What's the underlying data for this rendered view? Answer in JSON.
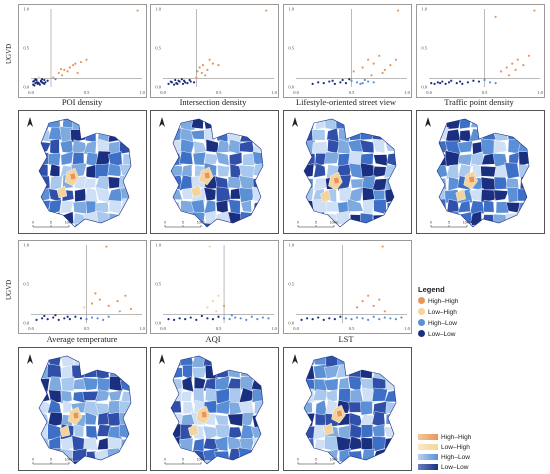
{
  "colors": {
    "high_high": "#e9955a",
    "low_high": "#f3d49c",
    "high_low": "#5b8fd6",
    "low_low": "#1b2f80",
    "axes": "#9a9a9a"
  },
  "y_label": "UGVD",
  "scatter_axis_ticks": {
    "x": [
      "0.0",
      "0.5",
      "1.0"
    ],
    "y": [
      "0.0",
      "0.5",
      "1.0"
    ]
  },
  "legend_points": {
    "title": "Legend",
    "items": [
      "High–High",
      "Low–High",
      "High–Low",
      "Low–Low"
    ]
  },
  "legend_bars": {
    "items": [
      "High–High",
      "Low–High",
      "High–Low",
      "Low–Low"
    ]
  },
  "map_scale_labels": [
    "0",
    "5",
    "10km"
  ],
  "chart_data": [
    {
      "type": "scatter",
      "title": "POI density",
      "xlabel": "POI density",
      "ylabel": "UGVD",
      "xlim": [
        0,
        1
      ],
      "ylim": [
        0,
        1
      ],
      "points": [
        [
          0.02,
          0.03
        ],
        [
          0.04,
          0.05
        ],
        [
          0.03,
          0.02
        ],
        [
          0.06,
          0.04
        ],
        [
          0.05,
          0.06
        ],
        [
          0.08,
          0.03
        ],
        [
          0.07,
          0.05
        ],
        [
          0.1,
          0.06
        ],
        [
          0.12,
          0.04
        ],
        [
          0.09,
          0.07
        ],
        [
          0.11,
          0.05
        ],
        [
          0.03,
          0.08
        ],
        [
          0.05,
          0.09
        ],
        [
          0.04,
          0.1
        ],
        [
          0.13,
          0.06
        ],
        [
          0.15,
          0.08
        ],
        [
          0.1,
          0.1
        ],
        [
          0.07,
          0.12
        ],
        [
          0.09,
          0.08
        ],
        [
          0.06,
          0.06
        ],
        [
          0.02,
          0.07
        ],
        [
          0.12,
          0.09
        ],
        [
          0.2,
          0.12
        ],
        [
          0.25,
          0.18
        ],
        [
          0.3,
          0.22
        ],
        [
          0.35,
          0.25
        ],
        [
          0.28,
          0.15
        ],
        [
          0.4,
          0.3
        ],
        [
          0.45,
          0.32
        ],
        [
          0.33,
          0.2
        ],
        [
          0.22,
          0.1
        ],
        [
          0.38,
          0.28
        ],
        [
          0.5,
          0.35
        ],
        [
          0.42,
          0.18
        ],
        [
          0.27,
          0.23
        ],
        [
          0.96,
          0.98
        ]
      ],
      "vline": 0.18,
      "hline": 0.11
    },
    {
      "type": "scatter",
      "title": "Intersection density",
      "xlabel": "Intersection density",
      "ylabel": "UGVD",
      "xlim": [
        0,
        1
      ],
      "ylim": [
        0,
        1
      ],
      "points": [
        [
          0.05,
          0.04
        ],
        [
          0.08,
          0.06
        ],
        [
          0.1,
          0.03
        ],
        [
          0.12,
          0.05
        ],
        [
          0.15,
          0.07
        ],
        [
          0.18,
          0.04
        ],
        [
          0.2,
          0.06
        ],
        [
          0.14,
          0.08
        ],
        [
          0.22,
          0.05
        ],
        [
          0.25,
          0.07
        ],
        [
          0.11,
          0.09
        ],
        [
          0.17,
          0.1
        ],
        [
          0.07,
          0.07
        ],
        [
          0.19,
          0.08
        ],
        [
          0.13,
          0.04
        ],
        [
          0.24,
          0.09
        ],
        [
          0.28,
          0.06
        ],
        [
          0.3,
          0.12
        ],
        [
          0.35,
          0.18
        ],
        [
          0.4,
          0.22
        ],
        [
          0.33,
          0.25
        ],
        [
          0.45,
          0.3
        ],
        [
          0.38,
          0.15
        ],
        [
          0.5,
          0.28
        ],
        [
          0.42,
          0.35
        ],
        [
          0.36,
          0.28
        ],
        [
          0.31,
          0.2
        ],
        [
          0.93,
          0.98
        ]
      ],
      "vline": 0.3,
      "hline": 0.11
    },
    {
      "type": "scatter",
      "title": "Lifestyle-oriented street view",
      "xlabel": "Lifestyle-oriented street view",
      "ylabel": "UGVD",
      "xlim": [
        0,
        1
      ],
      "ylim": [
        0,
        1
      ],
      "points": [
        [
          0.15,
          0.04
        ],
        [
          0.2,
          0.06
        ],
        [
          0.25,
          0.05
        ],
        [
          0.3,
          0.07
        ],
        [
          0.35,
          0.04
        ],
        [
          0.4,
          0.06
        ],
        [
          0.45,
          0.05
        ],
        [
          0.5,
          0.08
        ],
        [
          0.55,
          0.06
        ],
        [
          0.6,
          0.05
        ],
        [
          0.65,
          0.07
        ],
        [
          0.7,
          0.06
        ],
        [
          0.42,
          0.09
        ],
        [
          0.48,
          0.1
        ],
        [
          0.33,
          0.08
        ],
        [
          0.58,
          0.04
        ],
        [
          0.62,
          0.09
        ],
        [
          0.52,
          0.2
        ],
        [
          0.6,
          0.25
        ],
        [
          0.65,
          0.35
        ],
        [
          0.7,
          0.3
        ],
        [
          0.75,
          0.4
        ],
        [
          0.68,
          0.15
        ],
        [
          0.8,
          0.22
        ],
        [
          0.85,
          0.28
        ],
        [
          0.9,
          0.35
        ],
        [
          0.78,
          0.18
        ],
        [
          0.92,
          0.98
        ]
      ],
      "vline": 0.5,
      "hline": 0.11
    },
    {
      "type": "scatter",
      "title": "Traffic point density",
      "xlabel": "Traffic point density",
      "ylabel": "UGVD",
      "xlim": [
        0,
        1
      ],
      "ylim": [
        0,
        1
      ],
      "points": [
        [
          0.02,
          0.05
        ],
        [
          0.05,
          0.04
        ],
        [
          0.08,
          0.06
        ],
        [
          0.1,
          0.05
        ],
        [
          0.12,
          0.07
        ],
        [
          0.15,
          0.04
        ],
        [
          0.18,
          0.06
        ],
        [
          0.2,
          0.08
        ],
        [
          0.25,
          0.05
        ],
        [
          0.28,
          0.07
        ],
        [
          0.3,
          0.04
        ],
        [
          0.35,
          0.06
        ],
        [
          0.4,
          0.08
        ],
        [
          0.45,
          0.07
        ],
        [
          0.5,
          0.09
        ],
        [
          0.55,
          0.06
        ],
        [
          0.6,
          0.05
        ],
        [
          0.65,
          0.2
        ],
        [
          0.7,
          0.25
        ],
        [
          0.75,
          0.3
        ],
        [
          0.8,
          0.35
        ],
        [
          0.85,
          0.28
        ],
        [
          0.9,
          0.4
        ],
        [
          0.72,
          0.15
        ],
        [
          0.78,
          0.22
        ],
        [
          0.6,
          0.9
        ],
        [
          0.95,
          0.98
        ]
      ],
      "vline": 0.5,
      "hline": 0.11
    },
    {
      "type": "scatter",
      "title": "Average temperature",
      "xlabel": "Average temperature",
      "ylabel": "UGVD",
      "xlim": [
        0,
        1
      ],
      "ylim": [
        0,
        1
      ],
      "points": [
        [
          0.05,
          0.04
        ],
        [
          0.1,
          0.06
        ],
        [
          0.15,
          0.05
        ],
        [
          0.2,
          0.07
        ],
        [
          0.25,
          0.04
        ],
        [
          0.3,
          0.06
        ],
        [
          0.35,
          0.05
        ],
        [
          0.4,
          0.08
        ],
        [
          0.45,
          0.06
        ],
        [
          0.5,
          0.05
        ],
        [
          0.55,
          0.07
        ],
        [
          0.6,
          0.06
        ],
        [
          0.65,
          0.04
        ],
        [
          0.7,
          0.08
        ],
        [
          0.12,
          0.09
        ],
        [
          0.22,
          0.1
        ],
        [
          0.33,
          0.08
        ],
        [
          0.48,
          0.2
        ],
        [
          0.55,
          0.25
        ],
        [
          0.62,
          0.3
        ],
        [
          0.7,
          0.22
        ],
        [
          0.78,
          0.28
        ],
        [
          0.85,
          0.35
        ],
        [
          0.9,
          0.18
        ],
        [
          0.8,
          0.15
        ],
        [
          0.68,
          0.98
        ],
        [
          0.58,
          0.38
        ]
      ],
      "vline": 0.5,
      "hline": 0.11
    },
    {
      "type": "scatter",
      "title": "AQI",
      "xlabel": "AQI",
      "ylabel": "UGVD",
      "xlim": [
        0,
        1
      ],
      "ylim": [
        0,
        1
      ],
      "points": [
        [
          0.05,
          0.05
        ],
        [
          0.1,
          0.04
        ],
        [
          0.15,
          0.06
        ],
        [
          0.2,
          0.05
        ],
        [
          0.25,
          0.07
        ],
        [
          0.3,
          0.04
        ],
        [
          0.4,
          0.06
        ],
        [
          0.45,
          0.05
        ],
        [
          0.5,
          0.08
        ],
        [
          0.55,
          0.06
        ],
        [
          0.6,
          0.05
        ],
        [
          0.65,
          0.07
        ],
        [
          0.7,
          0.06
        ],
        [
          0.75,
          0.04
        ],
        [
          0.8,
          0.08
        ],
        [
          0.85,
          0.05
        ],
        [
          0.9,
          0.07
        ],
        [
          0.95,
          0.06
        ],
        [
          0.35,
          0.09
        ],
        [
          0.62,
          0.1
        ],
        [
          0.4,
          0.2
        ],
        [
          0.45,
          0.28
        ],
        [
          0.5,
          0.35
        ],
        [
          0.55,
          0.22
        ],
        [
          0.42,
          0.98
        ],
        [
          0.48,
          0.15
        ]
      ],
      "vline": 0.55,
      "hline": 0.11
    },
    {
      "type": "scatter",
      "title": "LST",
      "xlabel": "LST",
      "ylabel": "UGVD",
      "xlim": [
        0,
        1
      ],
      "ylim": [
        0,
        1
      ],
      "points": [
        [
          0.05,
          0.04
        ],
        [
          0.1,
          0.06
        ],
        [
          0.15,
          0.05
        ],
        [
          0.2,
          0.07
        ],
        [
          0.25,
          0.04
        ],
        [
          0.3,
          0.06
        ],
        [
          0.35,
          0.05
        ],
        [
          0.4,
          0.08
        ],
        [
          0.45,
          0.06
        ],
        [
          0.5,
          0.05
        ],
        [
          0.55,
          0.07
        ],
        [
          0.6,
          0.06
        ],
        [
          0.65,
          0.04
        ],
        [
          0.7,
          0.08
        ],
        [
          0.75,
          0.05
        ],
        [
          0.8,
          0.07
        ],
        [
          0.85,
          0.06
        ],
        [
          0.9,
          0.05
        ],
        [
          0.95,
          0.07
        ],
        [
          0.55,
          0.2
        ],
        [
          0.6,
          0.28
        ],
        [
          0.65,
          0.35
        ],
        [
          0.7,
          0.22
        ],
        [
          0.75,
          0.3
        ],
        [
          0.8,
          0.15
        ],
        [
          0.78,
          0.98
        ]
      ],
      "vline": 0.42,
      "hline": 0.11
    }
  ]
}
